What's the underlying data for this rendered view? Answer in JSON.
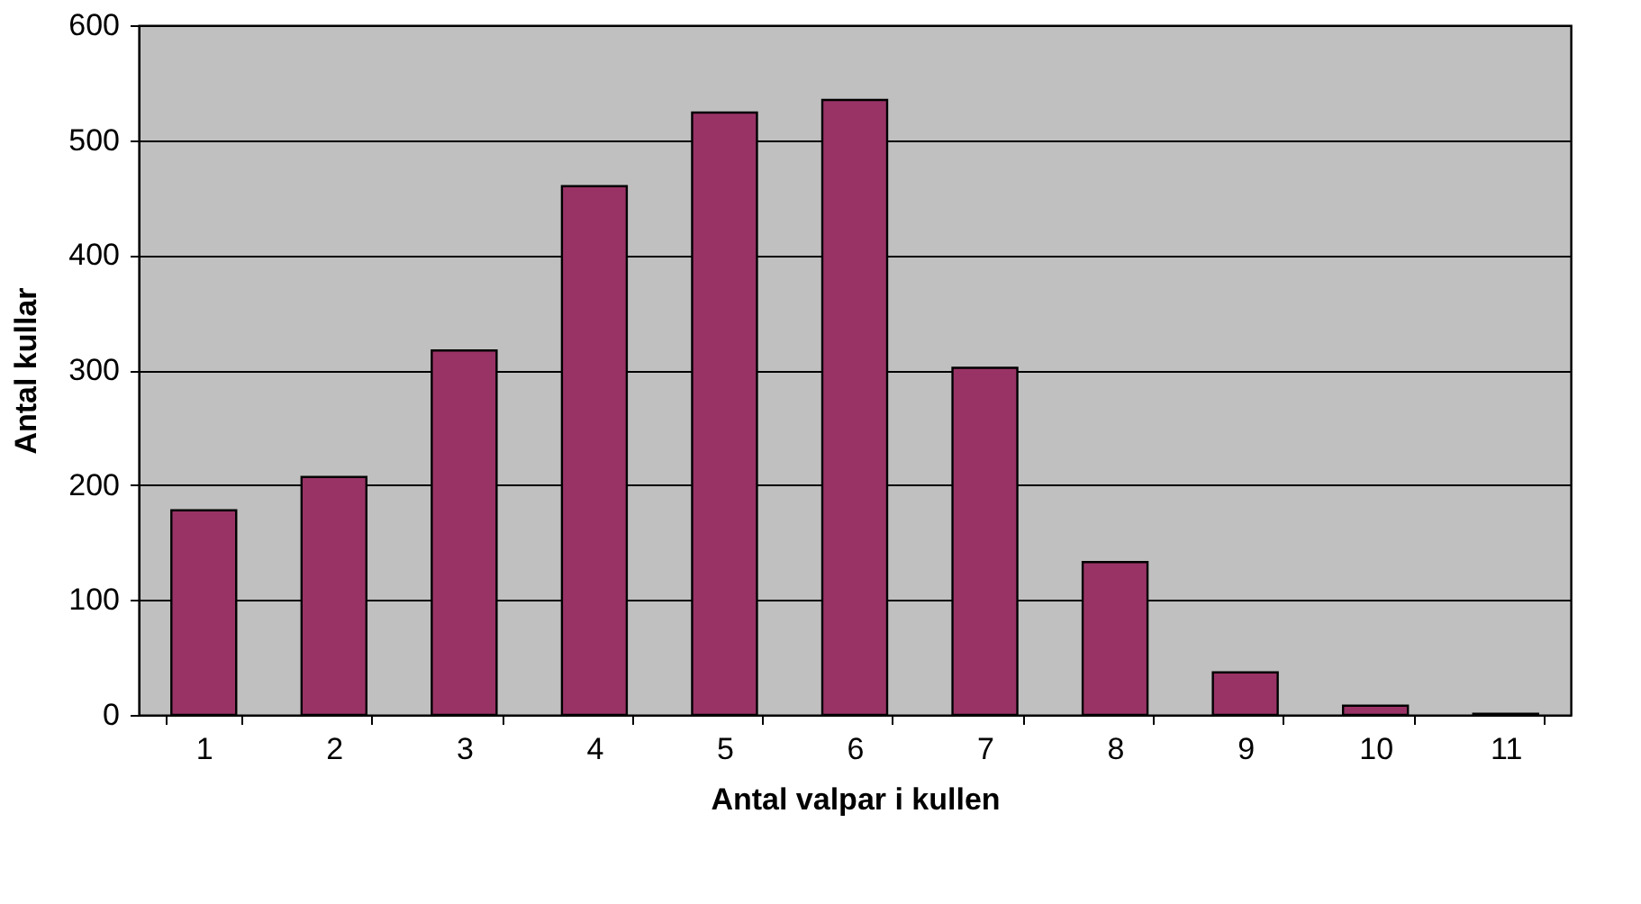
{
  "chart_data": {
    "type": "bar",
    "xlabel": "Antal valpar i kullen",
    "ylabel": "Antal kullar",
    "categories": [
      "1",
      "2",
      "3",
      "4",
      "5",
      "6",
      "7",
      "8",
      "9",
      "10",
      "11"
    ],
    "values": [
      178,
      207,
      317,
      460,
      524,
      535,
      302,
      133,
      37,
      8,
      1
    ],
    "color": "#993366",
    "ylim": [
      0,
      600
    ],
    "yticks": [
      0,
      100,
      200,
      300,
      400,
      500,
      600
    ],
    "grid": "y"
  }
}
